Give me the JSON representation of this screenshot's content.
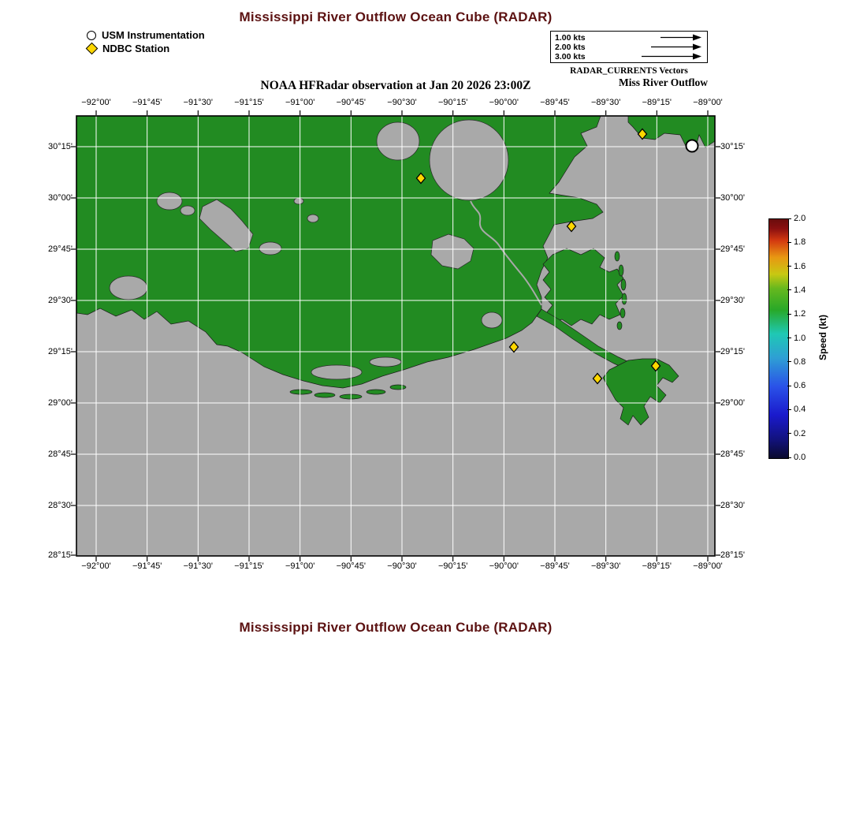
{
  "page": {
    "title": "Mississippi River Outflow Ocean Cube (RADAR)",
    "subtitle": "NOAA HFRadar observation at Jan 20 2026 23:00Z",
    "bottom_title": "Mississippi River Outflow Ocean Cube (RADAR)",
    "title_color": "#5c1212"
  },
  "legend": {
    "items": [
      {
        "symbol": "circle-icon",
        "label": "USM Instrumentation"
      },
      {
        "symbol": "diamond-icon",
        "label": "NDBC Station"
      }
    ]
  },
  "vector_scale": {
    "rows": [
      {
        "label": "1.00 kts"
      },
      {
        "label": "2.00 kts"
      },
      {
        "label": "3.00 kts"
      }
    ],
    "caption": "RADAR_CURRENTS Vectors",
    "region_label": "Miss River Outflow"
  },
  "map": {
    "x_tick_labels": [
      "−92°00'",
      "−91°45'",
      "−91°30'",
      "−91°15'",
      "−91°00'",
      "−90°45'",
      "−90°30'",
      "−90°15'",
      "−90°00'",
      "−89°45'",
      "−89°30'",
      "−89°15'",
      "−89°00'"
    ],
    "y_tick_labels": [
      "30°15'",
      "30°00'",
      "29°45'",
      "29°30'",
      "29°15'",
      "29°00'",
      "28°45'",
      "28°30'",
      "28°15'"
    ],
    "land_color": "#228b22",
    "water_color": "#a9a9a9",
    "grid_color": "#ffffff",
    "station_color": "#FFD700",
    "stations_ndbc": [
      [
        437,
        79
      ],
      [
        718,
        23
      ],
      [
        628,
        140
      ],
      [
        555,
        293
      ],
      [
        661,
        333
      ],
      [
        735,
        317
      ]
    ],
    "station_usm": [
      [
        781,
        38
      ]
    ]
  },
  "colorbar": {
    "label": "Speed (kt)",
    "ticks": [
      "0.0",
      "0.2",
      "0.4",
      "0.6",
      "0.8",
      "1.0",
      "1.2",
      "1.4",
      "1.6",
      "1.8",
      "2.0"
    ]
  }
}
